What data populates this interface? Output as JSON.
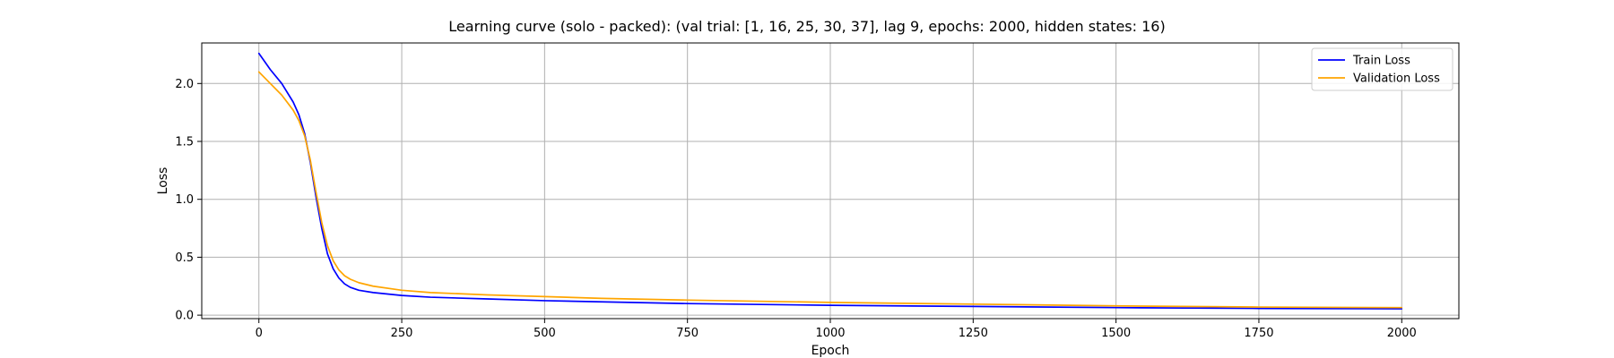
{
  "chart_data": {
    "type": "line",
    "title": "Learning curve (solo - packed): (val trial: [1, 16, 25, 30, 37], lag 9, epochs: 2000, hidden states: 16)",
    "xlabel": "Epoch",
    "ylabel": "Loss",
    "xlim": [
      -100,
      2100
    ],
    "ylim": [
      -0.03,
      2.35
    ],
    "xticks": [
      0,
      250,
      500,
      750,
      1000,
      1250,
      1500,
      1750,
      2000
    ],
    "xtick_labels": [
      "0",
      "250",
      "500",
      "750",
      "1000",
      "1250",
      "1500",
      "1750",
      "2000"
    ],
    "yticks": [
      0.0,
      0.5,
      1.0,
      1.5,
      2.0
    ],
    "ytick_labels": [
      "0.0",
      "0.5",
      "1.0",
      "1.5",
      "2.0"
    ],
    "grid": true,
    "legend_position": "top-right",
    "series": [
      {
        "name": "Train Loss",
        "color": "#0000ff",
        "x": [
          0,
          20,
          40,
          60,
          70,
          80,
          90,
          100,
          110,
          120,
          130,
          140,
          150,
          160,
          175,
          200,
          250,
          300,
          400,
          500,
          600,
          750,
          1000,
          1250,
          1500,
          1750,
          2000
        ],
        "y": [
          2.26,
          2.12,
          2.0,
          1.84,
          1.73,
          1.57,
          1.32,
          1.02,
          0.75,
          0.53,
          0.4,
          0.32,
          0.27,
          0.24,
          0.215,
          0.195,
          0.17,
          0.155,
          0.14,
          0.125,
          0.115,
          0.1,
          0.085,
          0.075,
          0.065,
          0.058,
          0.055
        ]
      },
      {
        "name": "Validation Loss",
        "color": "#ffa500",
        "x": [
          0,
          20,
          40,
          60,
          70,
          80,
          90,
          100,
          110,
          120,
          130,
          140,
          150,
          160,
          175,
          200,
          250,
          300,
          400,
          500,
          600,
          750,
          1000,
          1250,
          1500,
          1750,
          2000
        ],
        "y": [
          2.1,
          2.0,
          1.9,
          1.77,
          1.68,
          1.55,
          1.34,
          1.06,
          0.8,
          0.6,
          0.47,
          0.39,
          0.34,
          0.31,
          0.28,
          0.25,
          0.215,
          0.195,
          0.175,
          0.16,
          0.145,
          0.13,
          0.11,
          0.095,
          0.08,
          0.07,
          0.065
        ]
      }
    ]
  }
}
